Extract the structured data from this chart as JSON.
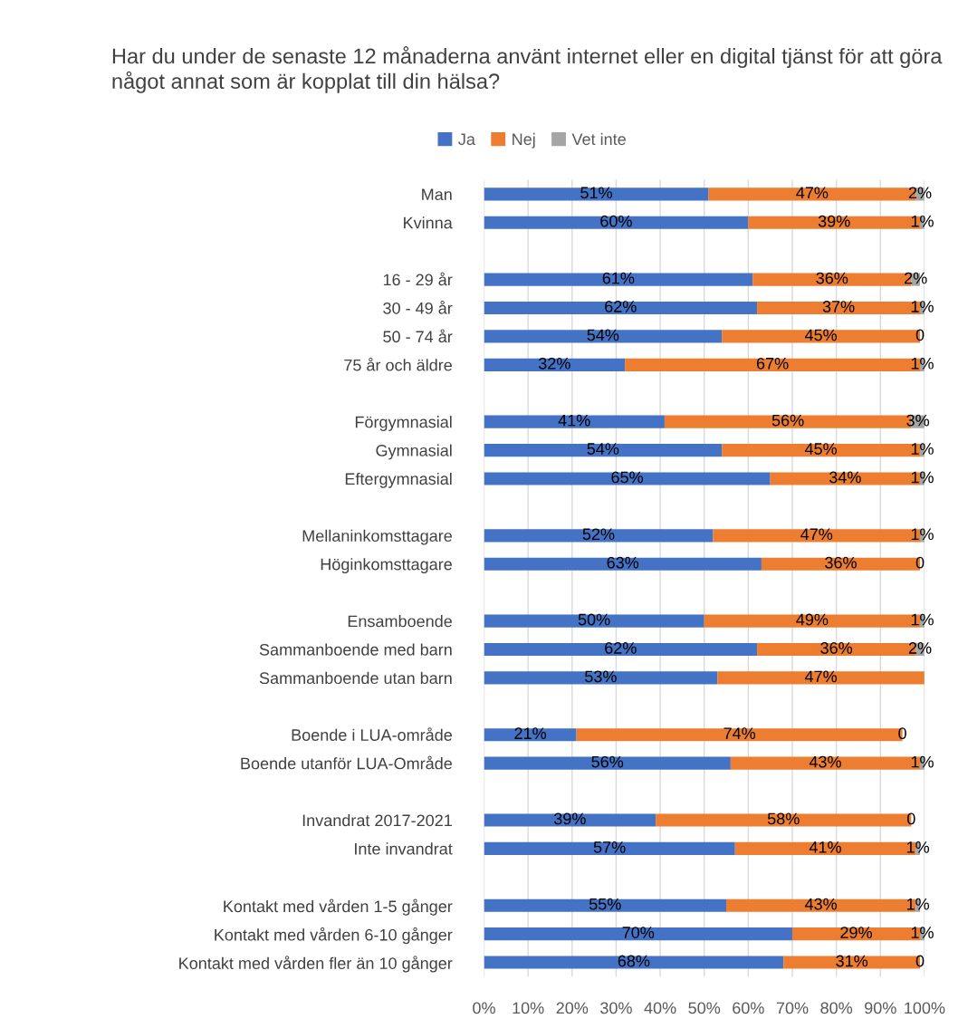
{
  "chart_data": {
    "type": "bar",
    "orientation": "horizontal",
    "stacked": true,
    "title": "Har du under de senaste 12 månaderna använt internet eller en digital tjänst för att göra något annat som är kopplat till din hälsa?",
    "categories": [
      "Man",
      "Kvinna",
      null,
      "16 - 29 år",
      "30 - 49 år",
      "50 - 74 år",
      "75 år och äldre",
      null,
      "Förgymnasial",
      "Gymnasial",
      "Eftergymnasial",
      null,
      "Mellaninkomsttagare",
      "Höginkomsttagare",
      null,
      "Ensamboende",
      "Sammanboende med barn",
      "Sammanboende utan barn",
      null,
      "Boende i LUA-område",
      "Boende utanför LUA-Område",
      null,
      "Invandrat 2017-2021",
      "Inte invandrat",
      null,
      "Kontakt med vården 1-5 gånger",
      "Kontakt med vården 6-10 gånger",
      "Kontakt med vården fler än 10 gånger"
    ],
    "series": [
      {
        "name": "Ja",
        "color": "#4472c4",
        "values": [
          51,
          60,
          null,
          61,
          62,
          54,
          32,
          null,
          41,
          54,
          65,
          null,
          52,
          63,
          null,
          50,
          62,
          53,
          null,
          21,
          56,
          null,
          39,
          57,
          null,
          55,
          70,
          68
        ],
        "value_labels": [
          "51%",
          "60%",
          null,
          "61%",
          "62%",
          "54%",
          "32%",
          null,
          "41%",
          "54%",
          "65%",
          null,
          "52%",
          "63%",
          null,
          "50%",
          "62%",
          "53%",
          null,
          "21%",
          "56%",
          null,
          "39%",
          "57%",
          null,
          "55%",
          "70%",
          "68%"
        ]
      },
      {
        "name": "Nej",
        "color": "#ed7d31",
        "values": [
          47,
          39,
          null,
          36,
          37,
          45,
          67,
          null,
          56,
          45,
          34,
          null,
          47,
          36,
          null,
          49,
          36,
          47,
          null,
          74,
          43,
          null,
          58,
          41,
          null,
          43,
          29,
          31
        ],
        "value_labels": [
          "47%",
          "39%",
          null,
          "36%",
          "37%",
          "45%",
          "67%",
          null,
          "56%",
          "45%",
          "34%",
          null,
          "47%",
          "36%",
          null,
          "49%",
          "36%",
          "47%",
          null,
          "74%",
          "43%",
          null,
          "58%",
          "41%",
          null,
          "43%",
          "29%",
          "31%"
        ]
      },
      {
        "name": "Vet inte",
        "color": "#a5a5a5",
        "values": [
          2,
          1,
          null,
          2,
          1,
          0,
          1,
          null,
          3,
          1,
          1,
          null,
          1,
          0,
          null,
          1,
          2,
          null,
          null,
          0,
          1,
          null,
          0,
          1,
          null,
          1,
          1,
          0
        ],
        "value_labels": [
          "2%",
          "1%",
          null,
          "2%",
          "1%",
          "0",
          "1%",
          null,
          "3%",
          "1%",
          "1%",
          null,
          "1%",
          "0",
          null,
          "1%",
          "2%",
          null,
          null,
          "0",
          "1%",
          null,
          "0",
          "1%",
          null,
          "1%",
          "1%",
          "0"
        ]
      }
    ],
    "xlim": [
      0,
      100
    ],
    "xticks": [
      {
        "value": 0,
        "label": "0%"
      },
      {
        "value": 10,
        "label": "10%"
      },
      {
        "value": 20,
        "label": "20%"
      },
      {
        "value": 30,
        "label": "30%"
      },
      {
        "value": 40,
        "label": "40%"
      },
      {
        "value": 50,
        "label": "50%"
      },
      {
        "value": 60,
        "label": "60%"
      },
      {
        "value": 70,
        "label": "70%"
      },
      {
        "value": 80,
        "label": "80%"
      },
      {
        "value": 90,
        "label": "90%"
      },
      {
        "value": 100,
        "label": "100%"
      }
    ],
    "grid": "x",
    "legend": "top"
  }
}
